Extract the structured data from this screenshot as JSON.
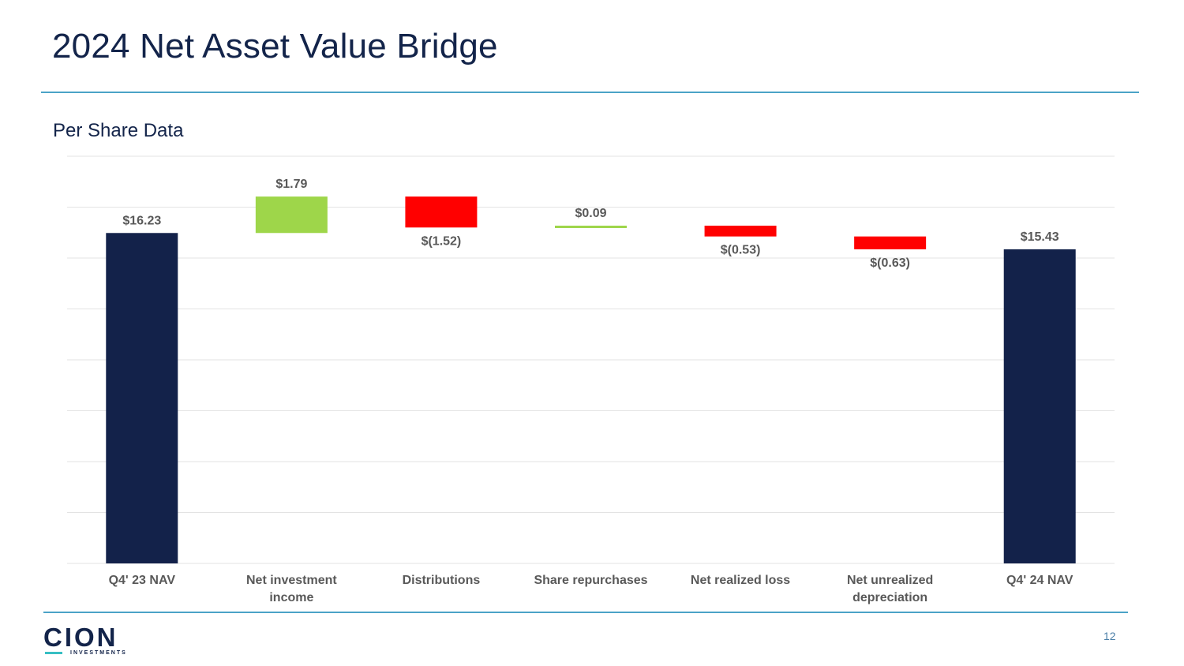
{
  "page": {
    "title": "2024 Net Asset Value Bridge",
    "subtitle": "Per Share Data",
    "page_number": "12",
    "logo_text": "CION",
    "logo_subtext": "INVESTMENTS"
  },
  "colors": {
    "total": "#13224a",
    "increase": "#9ed64a",
    "decrease": "#ff0000",
    "grid": "#e3e3e3",
    "label": "#595959"
  },
  "chart_data": {
    "type": "waterfall",
    "title": "Per Share Data",
    "categories": [
      [
        "Q4' 23 NAV"
      ],
      [
        "Net investment",
        "income"
      ],
      [
        "Distributions"
      ],
      [
        "Share repurchases"
      ],
      [
        "Net realized loss"
      ],
      [
        "Net unrealized",
        "depreciation"
      ],
      [
        "Q4' 24 NAV"
      ]
    ],
    "values": [
      16.23,
      1.79,
      -1.52,
      0.09,
      -0.53,
      -0.63,
      15.43
    ],
    "kinds": [
      "total",
      "increase",
      "decrease",
      "increase",
      "decrease",
      "decrease",
      "total"
    ],
    "labels": [
      "$16.23",
      "$1.79",
      "$(1.52)",
      "$0.09",
      "$(0.53)",
      "$(0.63)",
      "$15.43"
    ],
    "ylim": [
      0,
      20
    ],
    "gridlines": true
  }
}
